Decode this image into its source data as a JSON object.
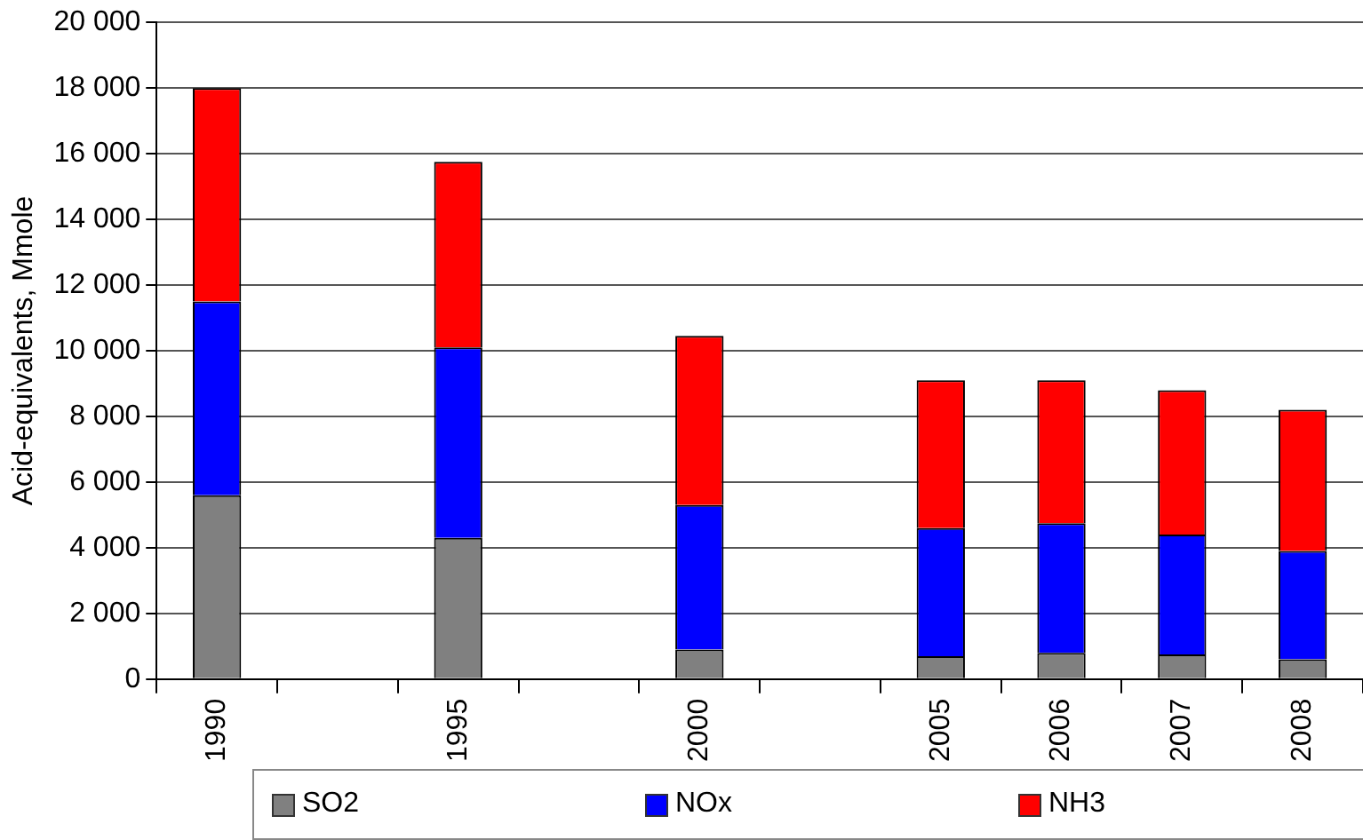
{
  "chart_data": {
    "type": "bar",
    "stacked": true,
    "ylabel": "Acid-equivalents, Mmole",
    "categories": [
      "1990",
      null,
      "1995",
      null,
      "2000",
      null,
      "2005",
      "2006",
      "2007",
      "2008"
    ],
    "series": [
      {
        "name": "SO2",
        "color": "#808080",
        "values": [
          5600,
          null,
          4300,
          null,
          900,
          null,
          700,
          800,
          750,
          600
        ]
      },
      {
        "name": "NOx",
        "color": "#0000ff",
        "values": [
          5900,
          null,
          5800,
          null,
          4400,
          null,
          3900,
          3950,
          3650,
          3300
        ]
      },
      {
        "name": "NH3",
        "color": "#ff0000",
        "values": [
          6500,
          null,
          5650,
          null,
          5150,
          null,
          4500,
          4350,
          4400,
          4300
        ]
      }
    ],
    "ylim": [
      0,
      20000
    ],
    "yticks": [
      0,
      {
        "value": 2000,
        "label": "2 000"
      },
      {
        "value": 4000,
        "label": "4 000"
      },
      {
        "value": 6000,
        "label": "6 000"
      },
      {
        "value": 8000,
        "label": "8 000"
      },
      {
        "value": 10000,
        "label": "10 000"
      },
      {
        "value": 12000,
        "label": "12 000"
      },
      {
        "value": 14000,
        "label": "14 000"
      },
      {
        "value": 16000,
        "label": "16 000"
      },
      {
        "value": 18000,
        "label": "18 000"
      },
      {
        "value": 20000,
        "label": "20 000"
      }
    ],
    "grid": "y",
    "legend": "bottom"
  }
}
